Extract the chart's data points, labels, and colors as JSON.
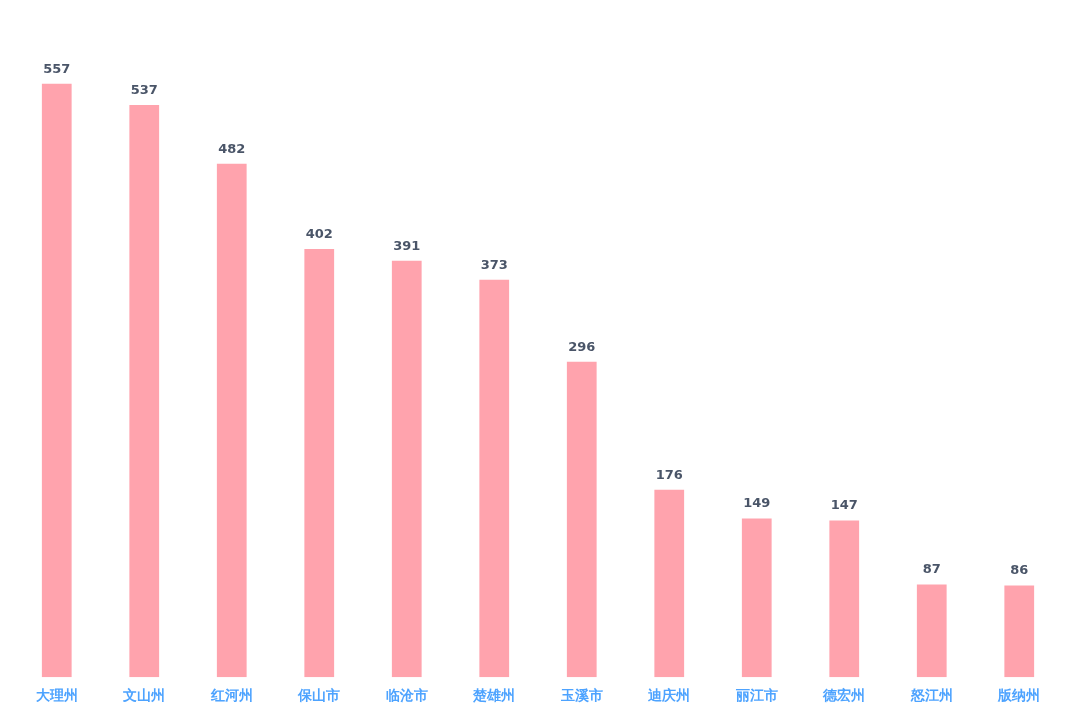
{
  "chart_data": {
    "type": "bar",
    "categories": [
      "大理州",
      "文山州",
      "红河州",
      "保山市",
      "临沧市",
      "楚雄州",
      "玉溪市",
      "迪庆州",
      "丽江市",
      "德宏州",
      "怒江州",
      "版纳州"
    ],
    "values": [
      557,
      537,
      482,
      402,
      391,
      373,
      296,
      176,
      149,
      147,
      87,
      86
    ],
    "color": "#ffa3ad",
    "data_labels": true,
    "grid": false,
    "legend": false,
    "tick_labels": "x"
  }
}
